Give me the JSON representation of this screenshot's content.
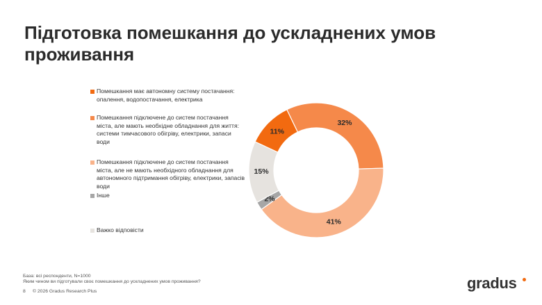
{
  "title": "Підготовка помешкання до ускладнених умов проживання",
  "chart_data": {
    "type": "donut",
    "categories": [
      "Помешкання має автономну систему постачання: опалення, водопостачання, електрика",
      "Помешкання підключене до систем постачання міста, але мають необхідне обладнання для життя: системи тимчасового обігріву, електрики, запаси води",
      "Помешкання підключене до систем постачання міста, але не мають необхідного обладнання для автономного підтримання обігріву, електрики, запасів води",
      "Інше",
      "Важко відповісти"
    ],
    "values": [
      11,
      32,
      41,
      2,
      15
    ],
    "value_labels": [
      "11%",
      "32%",
      "41%",
      "2%",
      "15%"
    ],
    "colors": [
      "#f26a10",
      "#f5894a",
      "#f9b38a",
      "#a6a6a6",
      "#e6e3df"
    ]
  },
  "footer": {
    "base": "База: всі респонденти, N=1000",
    "question": "Яким чином ви підготували своє помешкання до ускладнених умов проживання?",
    "page": "8",
    "copyright": "© 2026 Gradus Research Plus",
    "logo": "gradus"
  }
}
